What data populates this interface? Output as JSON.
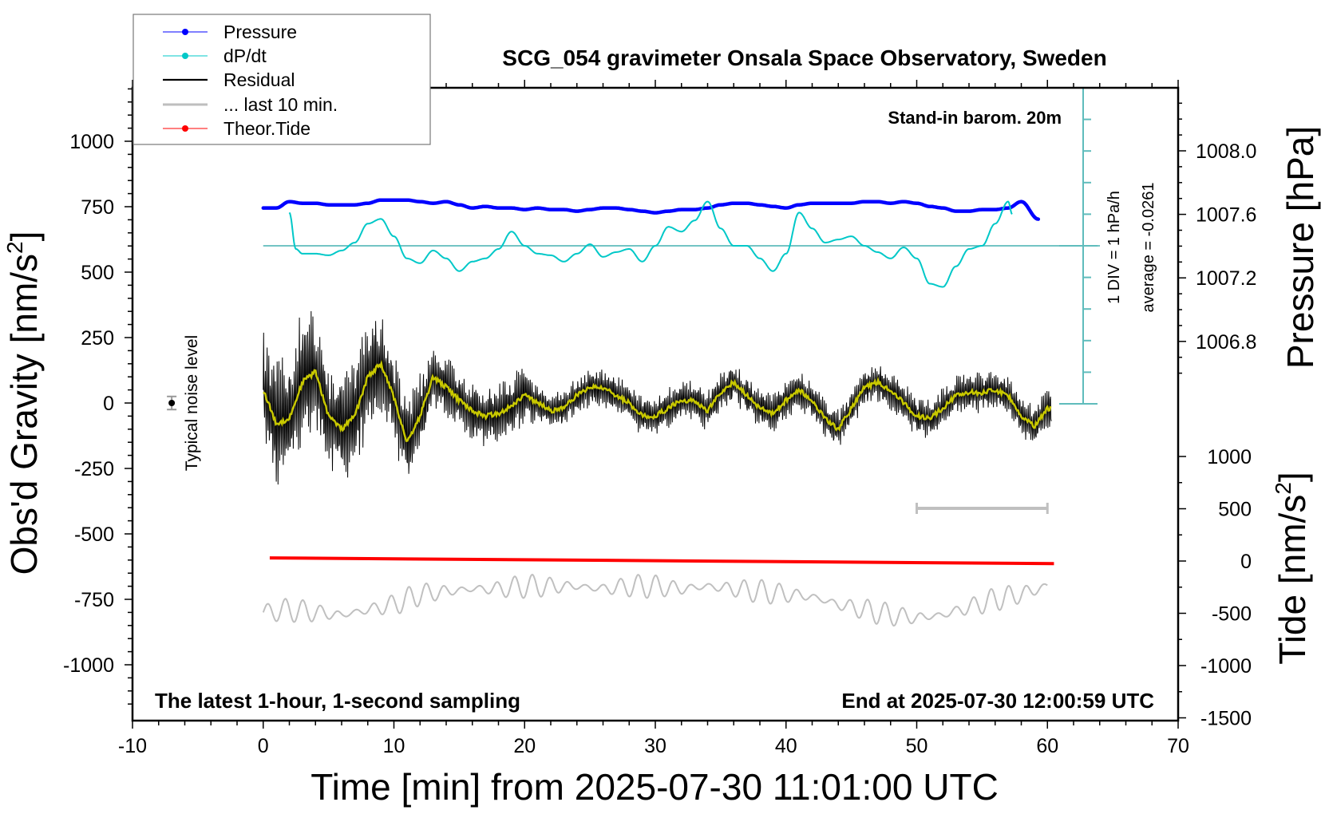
{
  "chart_data": {
    "type": "line",
    "title": "SCG_054 gravimeter Onsala Space Observatory, Sweden",
    "subtitle_top_right": "Stand-in barom. 20m",
    "footer_left": "The latest 1-hour, 1-second sampling",
    "footer_right": "End at 2025-07-30 12:00:59 UTC",
    "xlabel": "Time [min] from 2025-07-30 11:01:00 UTC",
    "ylabel_left": "Obs'd Gravity [nm/s",
    "ylabel_left_sup": "2",
    "ylabel_left_end": "]",
    "ylabel_pressure": "Pressure [hPa]",
    "ylabel_tide": "Tide [nm/s",
    "ylabel_tide_sup": "2",
    "ylabel_tide_end": "]",
    "dpdt_scale_label": "1 DIV = 1 hPa/h",
    "dpdt_average_label": "average = -0.0261",
    "noise_label": "Typical noise level",
    "xlim": [
      -10,
      70
    ],
    "ylim_left": [
      -1185,
      1000
    ],
    "x_ticks": [
      "-10",
      "0",
      "10",
      "20",
      "30",
      "40",
      "50",
      "60",
      "70"
    ],
    "y_ticks_left": [
      "1000",
      "750",
      "500",
      "250",
      "0",
      "-250",
      "-500",
      "-750",
      "-1000"
    ],
    "y_ticks_pressure": [
      "1008.0",
      "1007.6",
      "1007.2",
      "1006.8"
    ],
    "y_ticks_tide": [
      "1000",
      "500",
      "0",
      "-500",
      "-1000",
      "-1500"
    ],
    "legend": {
      "placement": "top-left",
      "entries": [
        {
          "label": "Pressure",
          "color": "#0000ff",
          "marker": "dot"
        },
        {
          "label": "dP/dt",
          "color": "#00c8c8",
          "marker": "dot"
        },
        {
          "label": "Residual",
          "color": "#000000",
          "marker": "line"
        },
        {
          "label": "... last 10 min.",
          "color": "#bebebe",
          "marker": "line"
        },
        {
          "label": "Theor.Tide",
          "color": "#ff0000",
          "marker": "dot"
        }
      ]
    },
    "colors": {
      "pressure": "#0000ff",
      "dpdt": "#00c8c8",
      "dpdt_axis": "#5fbcbc",
      "residual": "#000000",
      "smoothed": "#c8c800",
      "last10": "#c0c0c0",
      "tide": "#ff0000"
    },
    "series": {
      "residual_smoothed": {
        "x": [
          0,
          1,
          2,
          3,
          4,
          5,
          6,
          7,
          8,
          9,
          10,
          11,
          12,
          13,
          14,
          15,
          16,
          17,
          18,
          19,
          20,
          21,
          22,
          23,
          24,
          25,
          26,
          27,
          28,
          29,
          30,
          31,
          32,
          33,
          34,
          35,
          36,
          37,
          38,
          39,
          40,
          41,
          42,
          43,
          44,
          45,
          46,
          47,
          48,
          49,
          50,
          51,
          52,
          53,
          54,
          55,
          56,
          57,
          58,
          59,
          60
        ],
        "y": [
          50,
          -80,
          -60,
          80,
          120,
          -50,
          -100,
          -50,
          100,
          150,
          20,
          -150,
          -50,
          100,
          60,
          10,
          -30,
          -50,
          -40,
          -10,
          30,
          0,
          -30,
          -20,
          30,
          60,
          60,
          30,
          0,
          -50,
          -50,
          -20,
          10,
          10,
          -30,
          40,
          80,
          30,
          -20,
          -40,
          10,
          50,
          10,
          -60,
          -100,
          -20,
          60,
          80,
          50,
          0,
          -50,
          -60,
          -20,
          30,
          40,
          40,
          50,
          30,
          -50,
          -90,
          -20
        ]
      },
      "residual_amplitude_nm_s2": {
        "x": [
          0,
          2,
          3,
          5,
          8,
          10,
          12,
          13,
          20,
          21,
          60
        ],
        "y": [
          250,
          250,
          300,
          200,
          250,
          180,
          180,
          120,
          120,
          80,
          80
        ]
      },
      "pressure_hPa": {
        "x": [
          0,
          1,
          2,
          3,
          4,
          5,
          6,
          7,
          8,
          9,
          10,
          11,
          12,
          13,
          14,
          15,
          16,
          17,
          18,
          19,
          20,
          21,
          22,
          23,
          24,
          25,
          26,
          27,
          28,
          29,
          30,
          31,
          32,
          33,
          34,
          35,
          36,
          37,
          38,
          39,
          40,
          41,
          42,
          43,
          44,
          45,
          46,
          47,
          48,
          49,
          50,
          51,
          52,
          53,
          54,
          55,
          56,
          57,
          58,
          59.3
        ],
        "y": [
          1007.64,
          1007.64,
          1007.68,
          1007.67,
          1007.67,
          1007.66,
          1007.66,
          1007.66,
          1007.67,
          1007.69,
          1007.69,
          1007.69,
          1007.68,
          1007.67,
          1007.68,
          1007.66,
          1007.64,
          1007.65,
          1007.64,
          1007.64,
          1007.63,
          1007.64,
          1007.63,
          1007.63,
          1007.62,
          1007.63,
          1007.64,
          1007.64,
          1007.63,
          1007.62,
          1007.61,
          1007.62,
          1007.63,
          1007.63,
          1007.64,
          1007.66,
          1007.67,
          1007.67,
          1007.66,
          1007.65,
          1007.64,
          1007.66,
          1007.67,
          1007.67,
          1007.67,
          1007.67,
          1007.68,
          1007.68,
          1007.67,
          1007.68,
          1007.67,
          1007.65,
          1007.64,
          1007.62,
          1007.62,
          1007.63,
          1007.63,
          1007.64,
          1007.68,
          1007.57
        ]
      },
      "dpdt_hPa_per_h": {
        "x": [
          2,
          2.5,
          3,
          4,
          5,
          6,
          7,
          8,
          9,
          10,
          11,
          12,
          13,
          14,
          15,
          16,
          17,
          18,
          19,
          20,
          21,
          22,
          23,
          24,
          25,
          26,
          27,
          28,
          29,
          30,
          31,
          32,
          33,
          34,
          35,
          36,
          37,
          38,
          39,
          40,
          41,
          42,
          43,
          44,
          45,
          46,
          47,
          48,
          49,
          50,
          51,
          52,
          53,
          54,
          55,
          56,
          57,
          57.3
        ],
        "y": [
          1.05,
          -0.1,
          -0.25,
          -0.25,
          -0.3,
          -0.15,
          0.1,
          0.7,
          0.85,
          0.3,
          -0.4,
          -0.55,
          -0.15,
          -0.4,
          -0.8,
          -0.5,
          -0.4,
          -0.1,
          0.45,
          0,
          -0.25,
          -0.3,
          -0.5,
          -0.25,
          0.05,
          -0.35,
          -0.2,
          -0.1,
          -0.5,
          0,
          0.6,
          0.45,
          0.8,
          1.4,
          0.55,
          0,
          0,
          -0.4,
          -0.8,
          -0.25,
          1.05,
          0.55,
          0.1,
          0.2,
          0.3,
          0,
          -0.2,
          -0.4,
          -0.05,
          -0.4,
          -1.2,
          -1.3,
          -0.65,
          -0.1,
          0,
          0.7,
          1.4,
          1.0
        ]
      },
      "last10_residual": {
        "x": [
          0,
          2,
          4,
          6,
          8,
          10,
          12,
          14,
          16,
          18,
          20,
          22,
          24,
          26,
          28,
          30,
          32,
          34,
          36,
          38,
          40,
          42,
          44,
          46,
          48,
          50,
          52,
          54,
          56,
          58,
          60
        ],
        "y": [
          -800,
          -790,
          -800,
          -810,
          -790,
          -770,
          -730,
          -720,
          -710,
          -710,
          -700,
          -700,
          -700,
          -710,
          -700,
          -700,
          -710,
          -700,
          -710,
          -720,
          -730,
          -740,
          -770,
          -790,
          -810,
          -820,
          -810,
          -780,
          -750,
          -730,
          -700
        ]
      },
      "theoretical_tide_nm_s2": {
        "x": [
          0.5,
          60.5
        ],
        "y": [
          30,
          -25
        ]
      }
    },
    "last10_scale_bar_min": [
      50,
      60
    ],
    "noise_level": {
      "x": -7,
      "y": 0,
      "err": 25
    }
  }
}
